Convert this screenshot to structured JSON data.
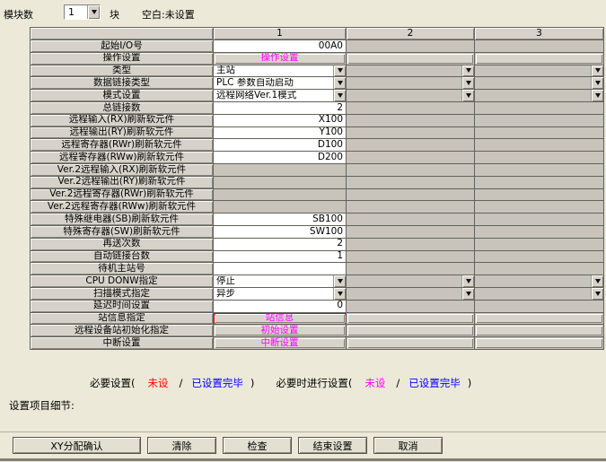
{
  "topbar": {
    "module_label": "模块数",
    "module_value": "1",
    "unit": "块",
    "note": "空白:未设置"
  },
  "table": {
    "columns": [
      "1",
      "2",
      "3"
    ],
    "rows": [
      {
        "label": "起始I/O号",
        "cells": [
          {
            "type": "input",
            "value": "00A0"
          },
          {
            "type": "blank"
          },
          {
            "type": "blank"
          }
        ]
      },
      {
        "label": "操作设置",
        "cells": [
          {
            "type": "button",
            "value": "操作设置"
          },
          {
            "type": "button_empty"
          },
          {
            "type": "button_empty"
          }
        ]
      },
      {
        "label": "类型",
        "cells": [
          {
            "type": "combo",
            "value": "主站"
          },
          {
            "type": "combo_empty"
          },
          {
            "type": "combo_empty"
          }
        ]
      },
      {
        "label": "数据链接类型",
        "cells": [
          {
            "type": "combo",
            "value": "PLC 参数自动启动"
          },
          {
            "type": "combo_empty"
          },
          {
            "type": "combo_empty"
          }
        ]
      },
      {
        "label": "模式设置",
        "cells": [
          {
            "type": "combo",
            "value": "远程网络Ver.1模式"
          },
          {
            "type": "combo_empty"
          },
          {
            "type": "combo_empty"
          }
        ]
      },
      {
        "label": "总链接数",
        "cells": [
          {
            "type": "input",
            "value": "2"
          },
          {
            "type": "blank"
          },
          {
            "type": "blank"
          }
        ]
      },
      {
        "label": "远程输入(RX)刷新软元件",
        "cells": [
          {
            "type": "input",
            "value": "X100"
          },
          {
            "type": "blank"
          },
          {
            "type": "blank"
          }
        ]
      },
      {
        "label": "远程输出(RY)刷新软元件",
        "cells": [
          {
            "type": "input",
            "value": "Y100"
          },
          {
            "type": "blank"
          },
          {
            "type": "blank"
          }
        ]
      },
      {
        "label": "远程寄存器(RWr)刷新软元件",
        "cells": [
          {
            "type": "input",
            "value": "D100"
          },
          {
            "type": "blank"
          },
          {
            "type": "blank"
          }
        ]
      },
      {
        "label": "远程寄存器(RWw)刷新软元件",
        "cells": [
          {
            "type": "input",
            "value": "D200"
          },
          {
            "type": "blank"
          },
          {
            "type": "blank"
          }
        ]
      },
      {
        "label": "Ver.2远程输入(RX)刷新软元件",
        "cells": [
          {
            "type": "blank"
          },
          {
            "type": "blank"
          },
          {
            "type": "blank"
          }
        ]
      },
      {
        "label": "Ver.2远程输出(RY)刷新软元件",
        "cells": [
          {
            "type": "blank"
          },
          {
            "type": "blank"
          },
          {
            "type": "blank"
          }
        ]
      },
      {
        "label": "Ver.2远程寄存器(RWr)刷新软元件",
        "cells": [
          {
            "type": "blank"
          },
          {
            "type": "blank"
          },
          {
            "type": "blank"
          }
        ]
      },
      {
        "label": "Ver.2远程寄存器(RWw)刷新软元件",
        "cells": [
          {
            "type": "blank"
          },
          {
            "type": "blank"
          },
          {
            "type": "blank"
          }
        ]
      },
      {
        "label": "特殊继电器(SB)刷新软元件",
        "cells": [
          {
            "type": "input",
            "value": "SB100"
          },
          {
            "type": "blank"
          },
          {
            "type": "blank"
          }
        ]
      },
      {
        "label": "特殊寄存器(SW)刷新软元件",
        "cells": [
          {
            "type": "input",
            "value": "SW100"
          },
          {
            "type": "blank"
          },
          {
            "type": "blank"
          }
        ]
      },
      {
        "label": "再送次数",
        "cells": [
          {
            "type": "input",
            "value": "2"
          },
          {
            "type": "blank"
          },
          {
            "type": "blank"
          }
        ]
      },
      {
        "label": "自动链接台数",
        "cells": [
          {
            "type": "input",
            "value": "1"
          },
          {
            "type": "blank"
          },
          {
            "type": "blank"
          }
        ]
      },
      {
        "label": "待机主站号",
        "cells": [
          {
            "type": "input",
            "value": ""
          },
          {
            "type": "blank"
          },
          {
            "type": "blank"
          }
        ]
      },
      {
        "label": "CPU DONW指定",
        "cells": [
          {
            "type": "combo",
            "value": "停止"
          },
          {
            "type": "combo_empty"
          },
          {
            "type": "combo_empty"
          }
        ]
      },
      {
        "label": "扫描模式指定",
        "cells": [
          {
            "type": "combo",
            "value": "异步"
          },
          {
            "type": "combo_empty"
          },
          {
            "type": "combo_empty"
          }
        ]
      },
      {
        "label": "延迟时间设置",
        "cells": [
          {
            "type": "input",
            "value": "0"
          },
          {
            "type": "blank"
          },
          {
            "type": "blank"
          }
        ]
      },
      {
        "label": "站信息指定",
        "cells": [
          {
            "type": "button",
            "value": "站信息",
            "highlight": true
          },
          {
            "type": "button_empty"
          },
          {
            "type": "button_empty"
          }
        ]
      },
      {
        "label": "远程设备站初始化指定",
        "cells": [
          {
            "type": "button",
            "value": "初始设置"
          },
          {
            "type": "button_empty"
          },
          {
            "type": "button_empty"
          }
        ]
      },
      {
        "label": "中断设置",
        "cells": [
          {
            "type": "button",
            "value": "中断设置"
          },
          {
            "type": "button_empty"
          },
          {
            "type": "button_empty"
          }
        ]
      }
    ]
  },
  "legend": {
    "parts": [
      {
        "text": "必要设置(",
        "color": "#000000"
      },
      {
        "text": "未设",
        "color": "#ff0000"
      },
      {
        "text": "/",
        "color": "#000000"
      },
      {
        "text": "已设置完毕",
        "color": "#0000ff"
      },
      {
        "text": ")",
        "color": "#000000"
      },
      {
        "text": "必要时进行设置(",
        "color": "#000000"
      },
      {
        "text": "未设",
        "color": "#ff00ff"
      },
      {
        "text": "/",
        "color": "#000000"
      },
      {
        "text": "已设置完毕",
        "color": "#0000ff"
      },
      {
        "text": ")",
        "color": "#000000"
      }
    ]
  },
  "details_label": "设置项目细节:",
  "footer": {
    "buttons": [
      "XY分配确认",
      "清除",
      "检查",
      "结束设置",
      "取消"
    ]
  },
  "colors": {
    "dialog_bg": "#ece9d8",
    "setting_link_magenta": "#ff00ff",
    "required_unset_red": "#ff0000",
    "done_blue": "#0000ff",
    "optional_unset_magenta": "#ff00ff",
    "highlight_box_red": "#ff0000"
  }
}
